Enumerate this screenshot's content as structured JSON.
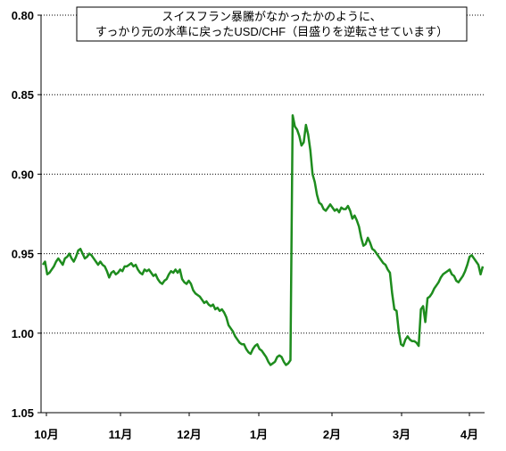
{
  "chart_data": {
    "type": "line",
    "title_lines": [
      "スイスフラン暴騰がなかったかのように、",
      "すっかり元の水準に戻ったUSD/CHF（目盛りを逆転させています）"
    ],
    "xlabel": "",
    "ylabel": "",
    "y_inverted": true,
    "ylim": [
      0.8,
      1.05
    ],
    "y_ticks": [
      "0.80",
      "0.85",
      "0.90",
      "0.95",
      "1.00",
      "1.05"
    ],
    "x_ticks": [
      "10月",
      "11月",
      "12月",
      "1月",
      "2月",
      "3月",
      "4月"
    ],
    "grid": "horizontal",
    "line_color": "#1e8c1e",
    "series": [
      {
        "values": [
          0.957,
          0.955,
          0.963,
          0.962,
          0.96,
          0.958,
          0.955,
          0.953,
          0.955,
          0.957,
          0.953,
          0.952,
          0.95,
          0.953,
          0.955,
          0.952,
          0.948,
          0.947,
          0.95,
          0.953,
          0.952,
          0.95,
          0.951,
          0.953,
          0.955,
          0.957,
          0.955,
          0.957,
          0.958,
          0.961,
          0.965,
          0.962,
          0.961,
          0.963,
          0.962,
          0.96,
          0.961,
          0.958,
          0.958,
          0.957,
          0.956,
          0.958,
          0.957,
          0.96,
          0.962,
          0.963,
          0.96,
          0.961,
          0.96,
          0.962,
          0.964,
          0.963,
          0.966,
          0.968,
          0.969,
          0.967,
          0.966,
          0.963,
          0.961,
          0.962,
          0.96,
          0.962,
          0.96,
          0.966,
          0.968,
          0.969,
          0.967,
          0.969,
          0.973,
          0.975,
          0.976,
          0.977,
          0.979,
          0.981,
          0.98,
          0.982,
          0.983,
          0.982,
          0.985,
          0.984,
          0.986,
          0.985,
          0.987,
          0.99,
          0.995,
          0.997,
          0.999,
          1.002,
          1.004,
          1.006,
          1.007,
          1.007,
          1.01,
          1.012,
          1.013,
          1.01,
          1.008,
          1.007,
          1.01,
          1.011,
          1.013,
          1.015,
          1.018,
          1.02,
          1.019,
          1.018,
          1.015,
          1.014,
          1.015,
          1.018,
          1.02,
          1.019,
          1.017,
          0.863,
          0.87,
          0.872,
          0.876,
          0.882,
          0.88,
          0.869,
          0.875,
          0.885,
          0.9,
          0.905,
          0.913,
          0.918,
          0.919,
          0.922,
          0.923,
          0.921,
          0.919,
          0.921,
          0.923,
          0.922,
          0.924,
          0.921,
          0.922,
          0.922,
          0.92,
          0.923,
          0.928,
          0.926,
          0.929,
          0.933,
          0.94,
          0.945,
          0.944,
          0.94,
          0.943,
          0.947,
          0.948,
          0.95,
          0.952,
          0.954,
          0.956,
          0.957,
          0.96,
          0.962,
          0.975,
          0.985,
          0.986,
          0.999,
          1.007,
          1.008,
          1.004,
          1.002,
          1.004,
          1.005,
          1.005,
          1.006,
          1.008,
          0.985,
          0.983,
          0.993,
          0.978,
          0.977,
          0.975,
          0.972,
          0.97,
          0.968,
          0.965,
          0.963,
          0.962,
          0.961,
          0.96,
          0.963,
          0.964,
          0.967,
          0.968,
          0.966,
          0.964,
          0.961,
          0.957,
          0.952,
          0.951,
          0.953,
          0.955,
          0.957,
          0.963,
          0.958
        ]
      }
    ]
  }
}
